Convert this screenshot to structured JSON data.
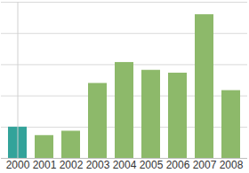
{
  "chart_data": {
    "type": "bar",
    "categories": [
      "2000",
      "2001",
      "2002",
      "2003",
      "2004",
      "2005",
      "2006",
      "2007",
      "2008"
    ],
    "values": [
      10,
      7.3,
      8.7,
      24,
      30.7,
      28.2,
      27.3,
      46,
      21.7
    ],
    "colors": [
      "#33a39a",
      "#8db96a",
      "#8db96a",
      "#8db96a",
      "#8db96a",
      "#8db96a",
      "#8db96a",
      "#8db96a",
      "#8db96a"
    ],
    "ylim": [
      0,
      50
    ],
    "yticks": [
      0,
      10,
      20,
      30,
      40,
      50
    ],
    "grid": true,
    "tick_labels": "x"
  }
}
